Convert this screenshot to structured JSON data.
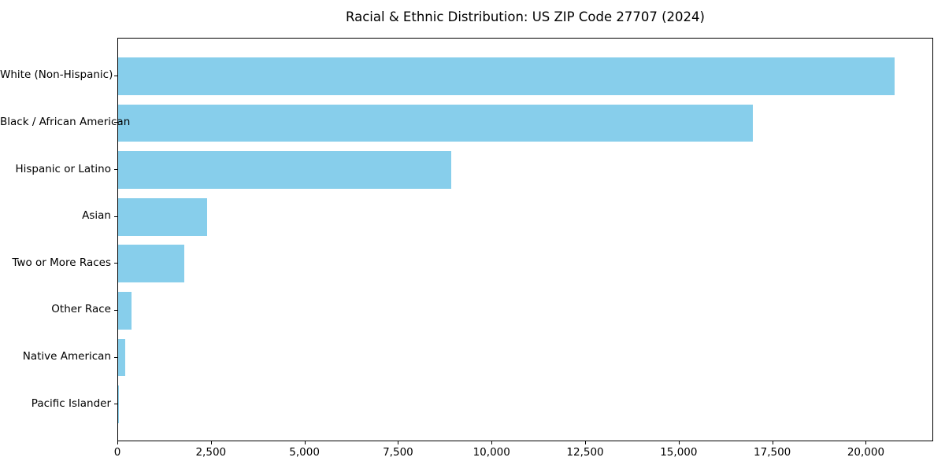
{
  "figure": {
    "background": "#ffffff",
    "frame_color": "#000000",
    "text_color": "#000000"
  },
  "chart_data": {
    "type": "bar",
    "orientation": "horizontal",
    "title": "Racial & Ethnic Distribution: US ZIP Code 27707 (2024)",
    "xlabel": "",
    "ylabel": "",
    "categories": [
      "White (Non-Hispanic)",
      "Black / African American",
      "Hispanic or Latino",
      "Asian",
      "Two or More Races",
      "Other Race",
      "Native American",
      "Pacific Islander"
    ],
    "values": [
      20750,
      16970,
      8900,
      2370,
      1760,
      350,
      185,
      15
    ],
    "bar_color": "#87CEEB",
    "xlim": [
      0,
      21800
    ],
    "xticks": [
      0,
      2500,
      5000,
      7500,
      10000,
      12500,
      15000,
      17500,
      20000
    ],
    "xtick_labels": [
      "0",
      "2,500",
      "5,000",
      "7,500",
      "10,000",
      "12,500",
      "15,000",
      "17,500",
      "20,000"
    ],
    "grid": false,
    "legend": false
  }
}
